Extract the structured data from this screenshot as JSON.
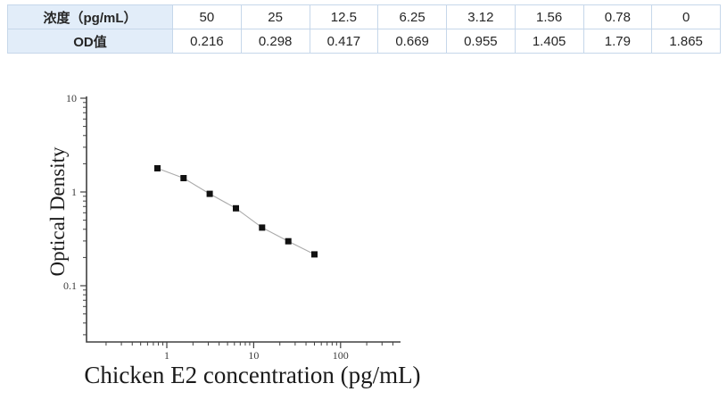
{
  "page": {
    "background": "#ffffff"
  },
  "table": {
    "rows": [
      {
        "header": "浓度（pg/mL）",
        "values": [
          "50",
          "25",
          "12.5",
          "6.25",
          "3.12",
          "1.56",
          "0.78",
          "0"
        ]
      },
      {
        "header": "OD值",
        "values": [
          "0.216",
          "0.298",
          "0.417",
          "0.669",
          "0.955",
          "1.405",
          "1.79",
          "1.865"
        ]
      }
    ],
    "style": {
      "header_bg": "#e2edf9",
      "border_color": "#c6d7ea",
      "text_color": "#262626"
    }
  },
  "chart_data": {
    "type": "scatter",
    "x": [
      0.78,
      1.56,
      3.12,
      6.25,
      12.5,
      25,
      50
    ],
    "y": [
      1.79,
      1.405,
      0.955,
      0.669,
      0.417,
      0.298,
      0.216
    ],
    "title": "",
    "xlabel": "Chicken E2 concentration (pg/mL)",
    "ylabel": "Optical Density",
    "xscale": "log",
    "yscale": "log",
    "xlim": [
      0.12,
      490
    ],
    "ylim": [
      0.025,
      10
    ],
    "x_ticks": [
      1,
      10,
      100
    ],
    "y_ticks": [
      10,
      1,
      0.1
    ],
    "grid": false,
    "legend": false,
    "marker": "square",
    "colors": {
      "marker": "#111111",
      "line": "#ababab",
      "axis": "#404040",
      "tick_label": "#3d3d3d"
    }
  }
}
